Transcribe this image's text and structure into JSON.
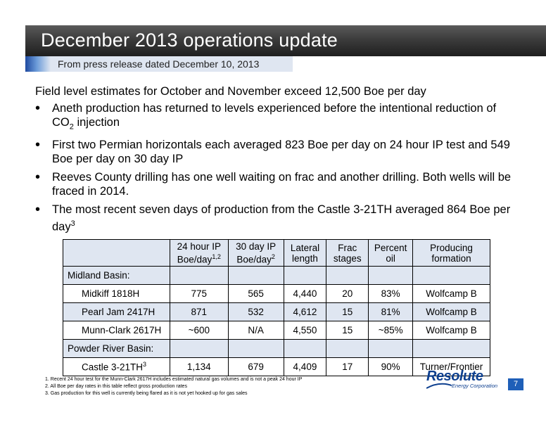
{
  "header": {
    "title": "December 2013 operations update",
    "subtitle": "From press release dated December 10, 2013"
  },
  "body": {
    "lead": "Field level estimates for October and November exceed 12,500 Boe per day",
    "bullets": {
      "b1_text": "Aneth production has returned to levels experienced before the intentional reduction of CO",
      "b1_sub": "2",
      "b1_tail": " injection",
      "b2": "First two Permian horizontals each averaged 823 Boe per day on 24 hour IP test and 549 Boe per day on 30 day IP",
      "b3": "Reeves County drilling has one well waiting on frac and another drilling. Both wells will be fraced in 2014.",
      "b4_text": "The most recent seven days of production from the Castle 3-21TH averaged 864 Boe per day",
      "b4_sup": "3"
    }
  },
  "table": {
    "headers": {
      "ip24_l1": "24 hour IP",
      "ip24_l2": "Boe/day",
      "ip24_sup": "1,2",
      "ip30_l1": "30 day IP",
      "ip30_l2": "Boe/day",
      "ip30_sup": "2",
      "lateral_l1": "Lateral",
      "lateral_l2": "length",
      "frac_l1": "Frac",
      "frac_l2": "stages",
      "oil_l1": "Percent",
      "oil_l2": "oil",
      "formation_l1": "Producing",
      "formation_l2": "formation"
    },
    "midland_basin": "Midland Basin:",
    "rows": [
      {
        "name": "Midkiff 1818H",
        "ip24": "775",
        "ip30": "565",
        "lateral": "4,440",
        "frac": "20",
        "oil": "83%",
        "formation": "Wolfcamp B"
      },
      {
        "name": "Pearl Jam 2417H",
        "ip24": "871",
        "ip30": "532",
        "lateral": "4,612",
        "frac": "15",
        "oil": "81%",
        "formation": "Wolfcamp B"
      },
      {
        "name": "Munn-Clark 2617H",
        "ip24": "~600",
        "ip30": "N/A",
        "lateral": "4,550",
        "frac": "15",
        "oil": "~85%",
        "formation": "Wolfcamp B"
      },
      {
        "name": "Castle 3-21TH",
        "name_sup": "3",
        "ip24": "1,134",
        "ip30": "679",
        "lateral": "4,409",
        "frac": "17",
        "oil": "90%",
        "formation": "Turner/Frontier"
      }
    ],
    "powder_river_basin": "Powder River Basin:"
  },
  "footnotes": [
    "1. Recent 24 hour test for the Munn-Clark 2617H includes estimated natural gas volumes and is not a peak 24 hour IP",
    "2. All Boe per day rates in this table reflect gross production rates",
    "3. Gas production for this well is currently being flared as it is not yet hooked up for gas sales"
  ],
  "footer": {
    "logo_word": "Resolute",
    "logo_tag": "Energy Corporation",
    "page_number": "7"
  },
  "colors": {
    "title_bar": "#3c3c3c",
    "subtitle_accent": "#1f4aa0",
    "table_shade": "#dfe6f1",
    "brand_blue": "#0d3f8f"
  }
}
